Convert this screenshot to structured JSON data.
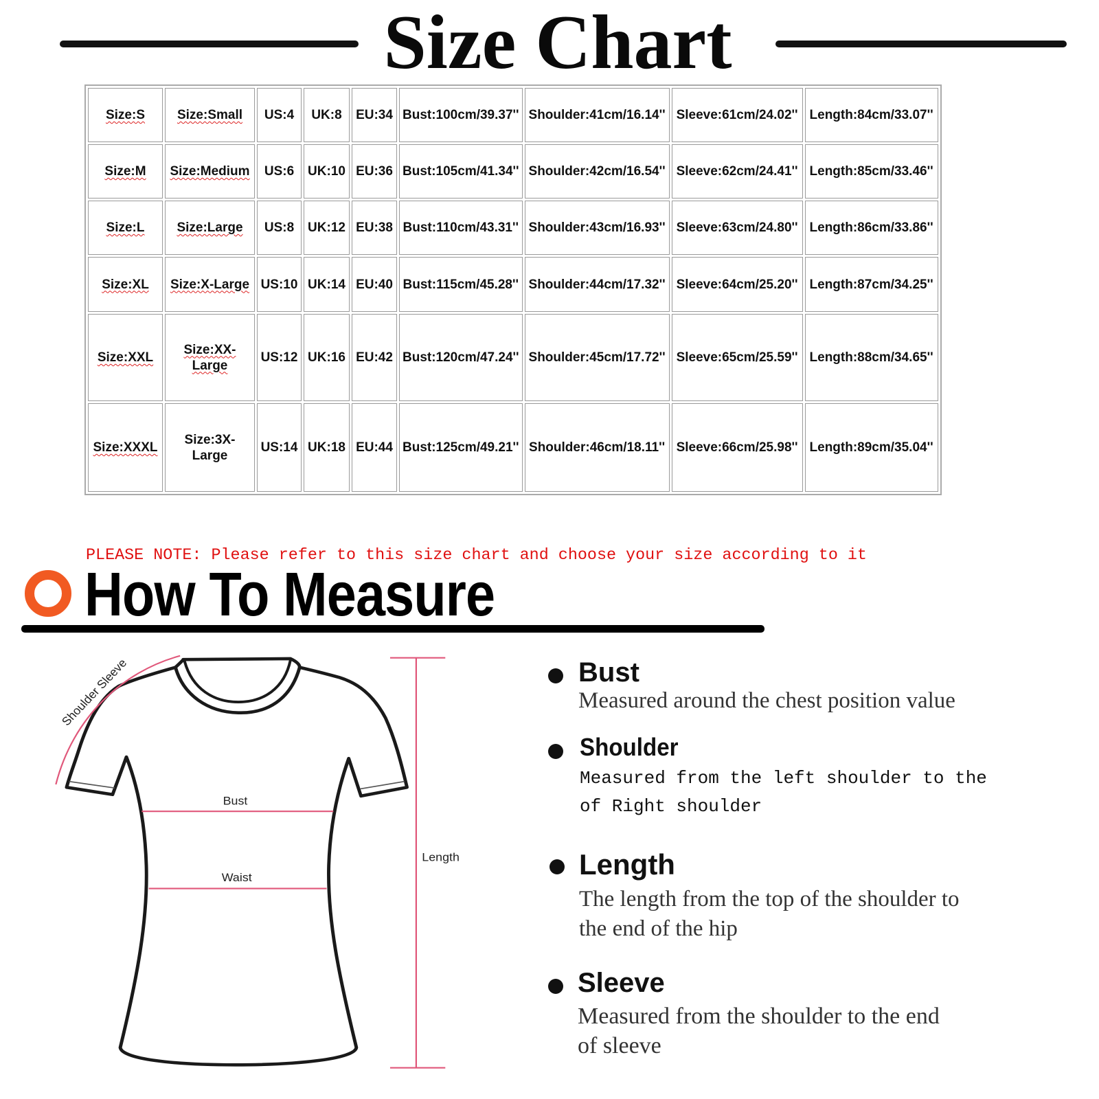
{
  "title": "Size Chart",
  "table": {
    "rows": [
      [
        "Size:S",
        "Size:Small",
        "US:4",
        "UK:8",
        "EU:34",
        "Bust:100cm/39.37''",
        "Shoulder:41cm/16.14''",
        "Sleeve:61cm/24.02''",
        "Length:84cm/33.07''"
      ],
      [
        "Size:M",
        "Size:Medium",
        "US:6",
        "UK:10",
        "EU:36",
        "Bust:105cm/41.34''",
        "Shoulder:42cm/16.54''",
        "Sleeve:62cm/24.41''",
        "Length:85cm/33.46''"
      ],
      [
        "Size:L",
        "Size:Large",
        "US:8",
        "UK:12",
        "EU:38",
        "Bust:110cm/43.31''",
        "Shoulder:43cm/16.93''",
        "Sleeve:63cm/24.80''",
        "Length:86cm/33.86''"
      ],
      [
        "Size:XL",
        "Size:X-Large",
        "US:10",
        "UK:14",
        "EU:40",
        "Bust:115cm/45.28''",
        "Shoulder:44cm/17.32''",
        "Sleeve:64cm/25.20''",
        "Length:87cm/34.25''"
      ],
      [
        "Size:XXL",
        "Size:XX-Large",
        "US:12",
        "UK:16",
        "EU:42",
        "Bust:120cm/47.24''",
        "Shoulder:45cm/17.72''",
        "Sleeve:65cm/25.59''",
        "Length:88cm/34.65''"
      ],
      [
        "Size:XXXL",
        "Size:3X-Large",
        "US:14",
        "UK:18",
        "EU:44",
        "Bust:125cm/49.21''",
        "Shoulder:46cm/18.11''",
        "Sleeve:66cm/25.98''",
        "Length:89cm/35.04''"
      ]
    ]
  },
  "note": "PLEASE NOTE: Please refer to this size chart and choose your size according to it",
  "how_to_measure": "How To Measure",
  "diagram": {
    "shoulder_sleeve": "Shoulder Sleeve",
    "bust": "Bust",
    "waist": "Waist",
    "length": "Length"
  },
  "measures": {
    "bust": {
      "title": "Bust",
      "lines": [
        "Measured around the chest position value"
      ]
    },
    "shoulder": {
      "title": "Shoulder",
      "lines": [
        "Measured from the left shoulder to the",
        "of Right shoulder"
      ]
    },
    "length": {
      "title": "Length",
      "lines": [
        "The length from the top of the shoulder to",
        "the end of the hip"
      ]
    },
    "sleeve": {
      "title": "Sleeve",
      "lines": [
        "Measured from the shoulder to the end",
        "of sleeve"
      ]
    }
  },
  "colors": {
    "accent_orange": "#f15a22",
    "note_red": "#e01010",
    "measure_pink": "#e0577a"
  }
}
